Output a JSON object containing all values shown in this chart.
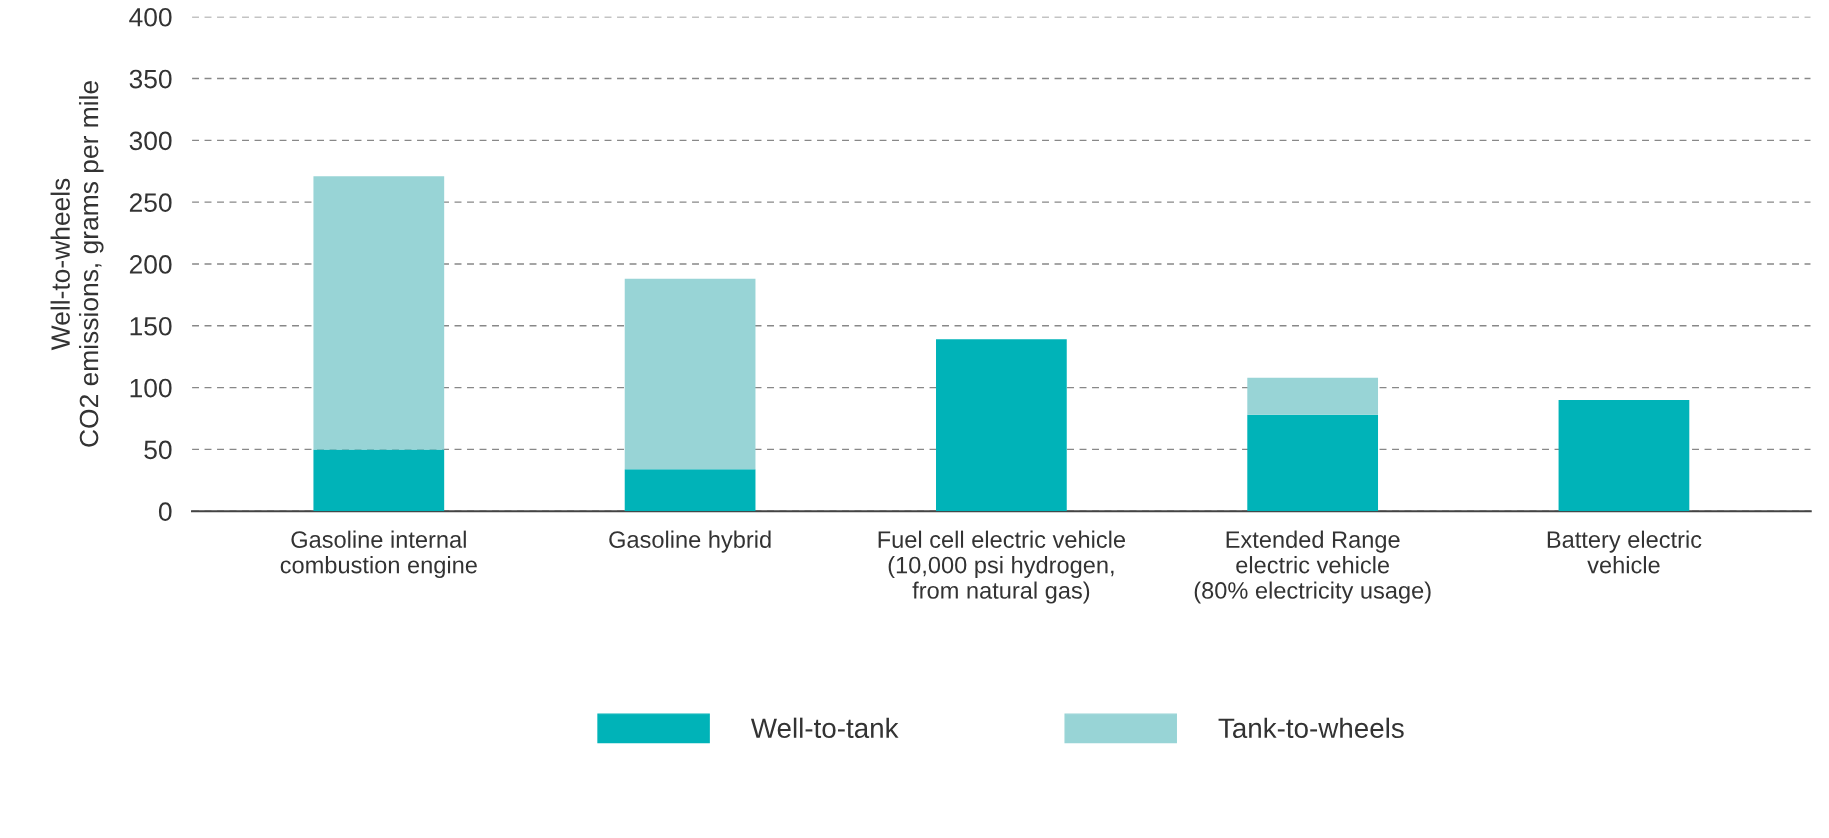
{
  "chart_data": {
    "type": "bar",
    "stacked": true,
    "ylabel": "Well-to-wheels\nCO2 emissions, grams per mile",
    "categories": [
      "Gasoline internal\ncombustion engine",
      "Gasoline hybrid",
      "Fuel cell electric vehicle\n(10,000 psi hydrogen,\nfrom natural gas)",
      "Extended Range\nelectric vehicle\n(80% electricity usage)",
      "Battery electric\nvehicle"
    ],
    "series": [
      {
        "name": "Well-to-tank",
        "color": "#00b3b8",
        "values": [
          50,
          34,
          139,
          78,
          90
        ]
      },
      {
        "name": "Tank-to-wheels",
        "color": "#98d4d6",
        "values": [
          221,
          154,
          0,
          30,
          0
        ]
      }
    ],
    "ylim": [
      0,
      400
    ],
    "yticks": [
      0,
      50,
      100,
      150,
      200,
      250,
      300,
      350,
      400
    ],
    "grid": "y",
    "legend": "bottom"
  }
}
